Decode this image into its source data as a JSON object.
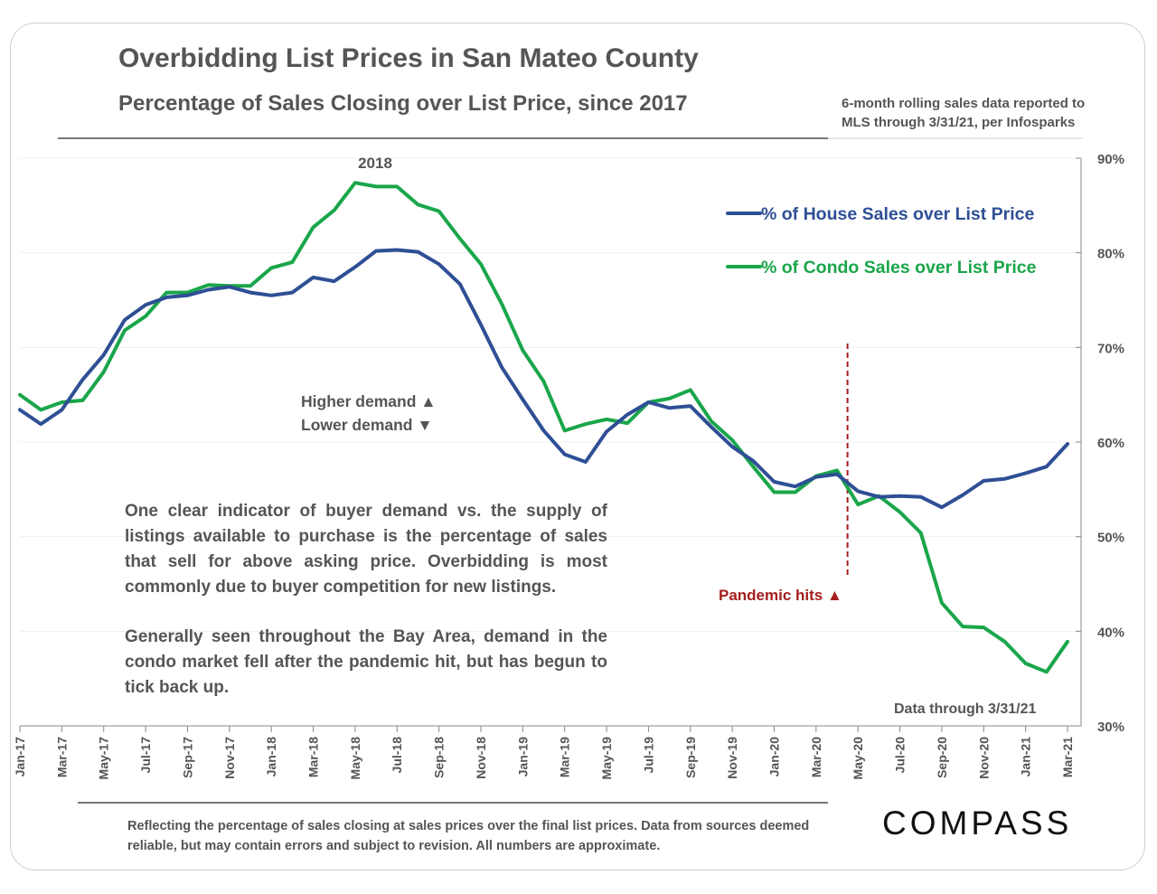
{
  "header": {
    "title": "Overbidding List Prices in San Mateo County",
    "subtitle": "Percentage of Sales Closing over List Price, since 2017",
    "source_note_line1": "6-month rolling sales data reported to",
    "source_note_line2": "MLS through 3/31/21, per Infosparks"
  },
  "annotations": {
    "year_2018": "2018",
    "higher_demand": "Higher demand ▲",
    "lower_demand": "Lower demand ▼",
    "pandemic_hits": "Pandemic hits ▲",
    "data_through": "Data through 3/31/21"
  },
  "body_text": {
    "paragraph1": "One clear indicator of buyer demand vs. the supply of listings available to purchase is the percentage of sales that sell for above asking price. Overbidding is most commonly due to buyer competition for new listings.",
    "paragraph2": "Generally seen throughout the Bay Area, demand in the condo market fell after the pandemic hit, but has begun to tick back up."
  },
  "footer": {
    "disclaimer": "Reflecting the percentage of sales closing at sales prices over the final list prices. Data from sources deemed reliable, but may contain errors and subject to revision. All numbers are approximate.",
    "logo_text": "COMPASS"
  },
  "colors": {
    "house": "#2e4f95",
    "condo": "#1aa64a",
    "pandemic": "#a51d1d",
    "axis": "#888888",
    "text": "#555555"
  },
  "chart_data": {
    "type": "line",
    "title": "Overbidding List Prices in San Mateo County",
    "xlabel": "",
    "ylabel": "",
    "ylim": [
      30,
      90
    ],
    "y_ticks": [
      30,
      40,
      50,
      60,
      70,
      80,
      90
    ],
    "y_tick_labels": [
      "30%",
      "40%",
      "50%",
      "60%",
      "70%",
      "80%",
      "90%"
    ],
    "x_tick_labels": [
      "Jan-17",
      "Mar-17",
      "May-17",
      "Jul-17",
      "Sep-17",
      "Nov-17",
      "Jan-18",
      "Mar-18",
      "May-18",
      "Jul-18",
      "Sep-18",
      "Nov-18",
      "Jan-19",
      "Mar-19",
      "May-19",
      "Jul-19",
      "Sep-19",
      "Nov-19",
      "Jan-20",
      "Mar-20",
      "May-20",
      "Jul-20",
      "Sep-20",
      "Nov-20",
      "Jan-21",
      "Mar-21"
    ],
    "legend_position": "top-right",
    "pandemic_index": 39.5,
    "series": [
      {
        "name": "% of House Sales over List Price",
        "values": [
          63.4,
          61.9,
          63.4,
          66.6,
          69.2,
          72.9,
          74.5,
          75.3,
          75.5,
          76.1,
          76.4,
          75.8,
          75.5,
          75.8,
          77.4,
          77.0,
          78.5,
          80.2,
          80.3,
          80.1,
          78.8,
          76.7,
          72.4,
          67.9,
          64.5,
          61.2,
          58.7,
          57.9,
          61.1,
          62.9,
          64.2,
          63.6,
          63.8,
          61.6,
          59.5,
          58.0,
          55.8,
          55.3,
          56.3,
          56.6,
          54.8,
          54.2,
          54.3,
          54.2,
          53.1,
          54.4,
          55.9,
          56.1,
          56.7,
          57.4,
          59.8
        ]
      },
      {
        "name": "% of Condo Sales over List Price",
        "values": [
          65.0,
          63.4,
          64.2,
          64.4,
          67.4,
          71.8,
          73.3,
          75.8,
          75.8,
          76.6,
          76.5,
          76.5,
          78.4,
          79.0,
          82.7,
          84.5,
          87.4,
          87.0,
          87.0,
          85.1,
          84.4,
          81.5,
          78.8,
          74.6,
          69.7,
          66.4,
          61.2,
          61.9,
          62.4,
          62.0,
          64.2,
          64.6,
          65.5,
          62.2,
          60.2,
          57.4,
          54.7,
          54.7,
          56.4,
          57.0,
          53.4,
          54.3,
          52.6,
          50.4,
          43.0,
          40.5,
          40.4,
          38.9,
          36.6,
          35.7,
          38.9
        ]
      }
    ]
  }
}
